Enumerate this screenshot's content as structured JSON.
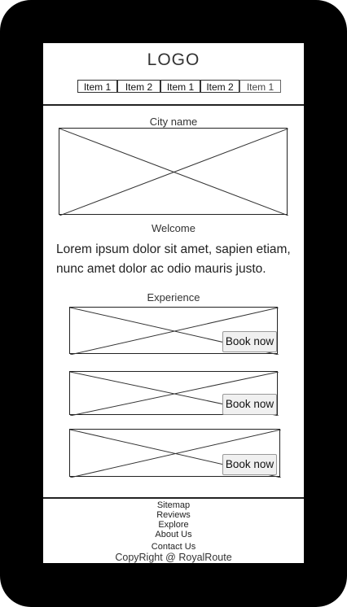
{
  "header": {
    "logo": "LOGO",
    "nav": [
      "Item 1",
      "Item 2",
      "Item 1",
      "Item 2",
      "Item 1"
    ]
  },
  "city": {
    "title": "City name"
  },
  "welcome": {
    "title": "Welcome",
    "text": "Lorem ipsum dolor sit amet, sapien etiam, nunc amet dolor ac odio mauris justo."
  },
  "experience": {
    "title": "Experience",
    "cards": [
      {
        "button_label": "Book now"
      },
      {
        "button_label": "Book now"
      },
      {
        "button_label": "Book now"
      }
    ]
  },
  "footer": {
    "links": [
      "Sitemap",
      "Reviews",
      "Explore",
      "About Us",
      "Contact Us"
    ],
    "copyright": "CopyRight @ RoyalRoute"
  }
}
